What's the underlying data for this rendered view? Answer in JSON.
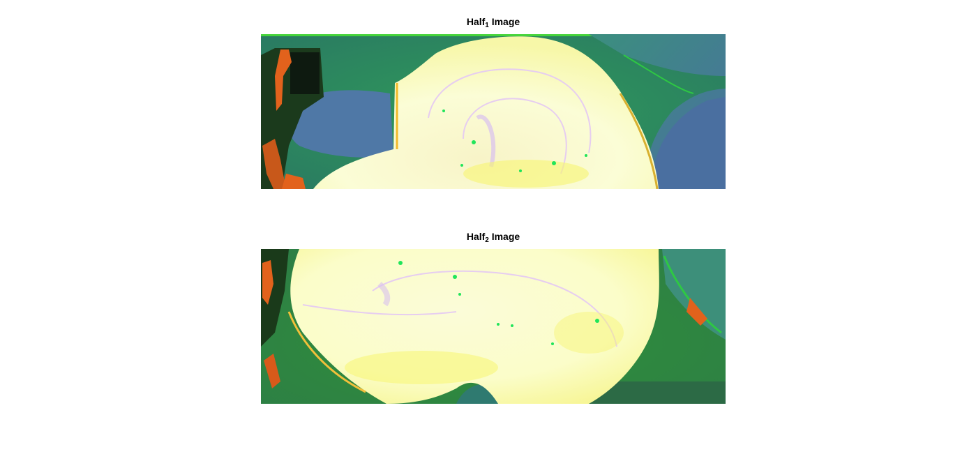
{
  "panels": [
    {
      "title_main": "Half",
      "title_sub": "1",
      "title_rest": " Image"
    },
    {
      "title_main": "Half",
      "title_sub": "2",
      "title_rest": " Image"
    }
  ],
  "colors": {
    "background": "#ffffff",
    "petal_cream": "#fbfdc9",
    "petal_yellow": "#f7f571",
    "petal_lavender": "#e0c3f3",
    "leaf_teal": "#3d8f7a",
    "leaf_blue": "#4f78a6",
    "leaf_green": "#26c228",
    "edge_orange": "#e2621c",
    "shadow_dark": "#0e1a10"
  }
}
